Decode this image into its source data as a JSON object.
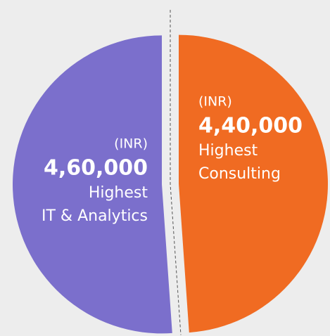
{
  "chart_data": {
    "type": "pie",
    "categories": [
      "Consulting",
      "IT & Analytics"
    ],
    "values": [
      440000,
      460000
    ],
    "value_labels": [
      "4,40,000",
      "4,60,000"
    ],
    "colors": [
      "#f06b22",
      "#7b6fcc"
    ],
    "unit_label": "(INR)",
    "label_word": "Highest"
  }
}
